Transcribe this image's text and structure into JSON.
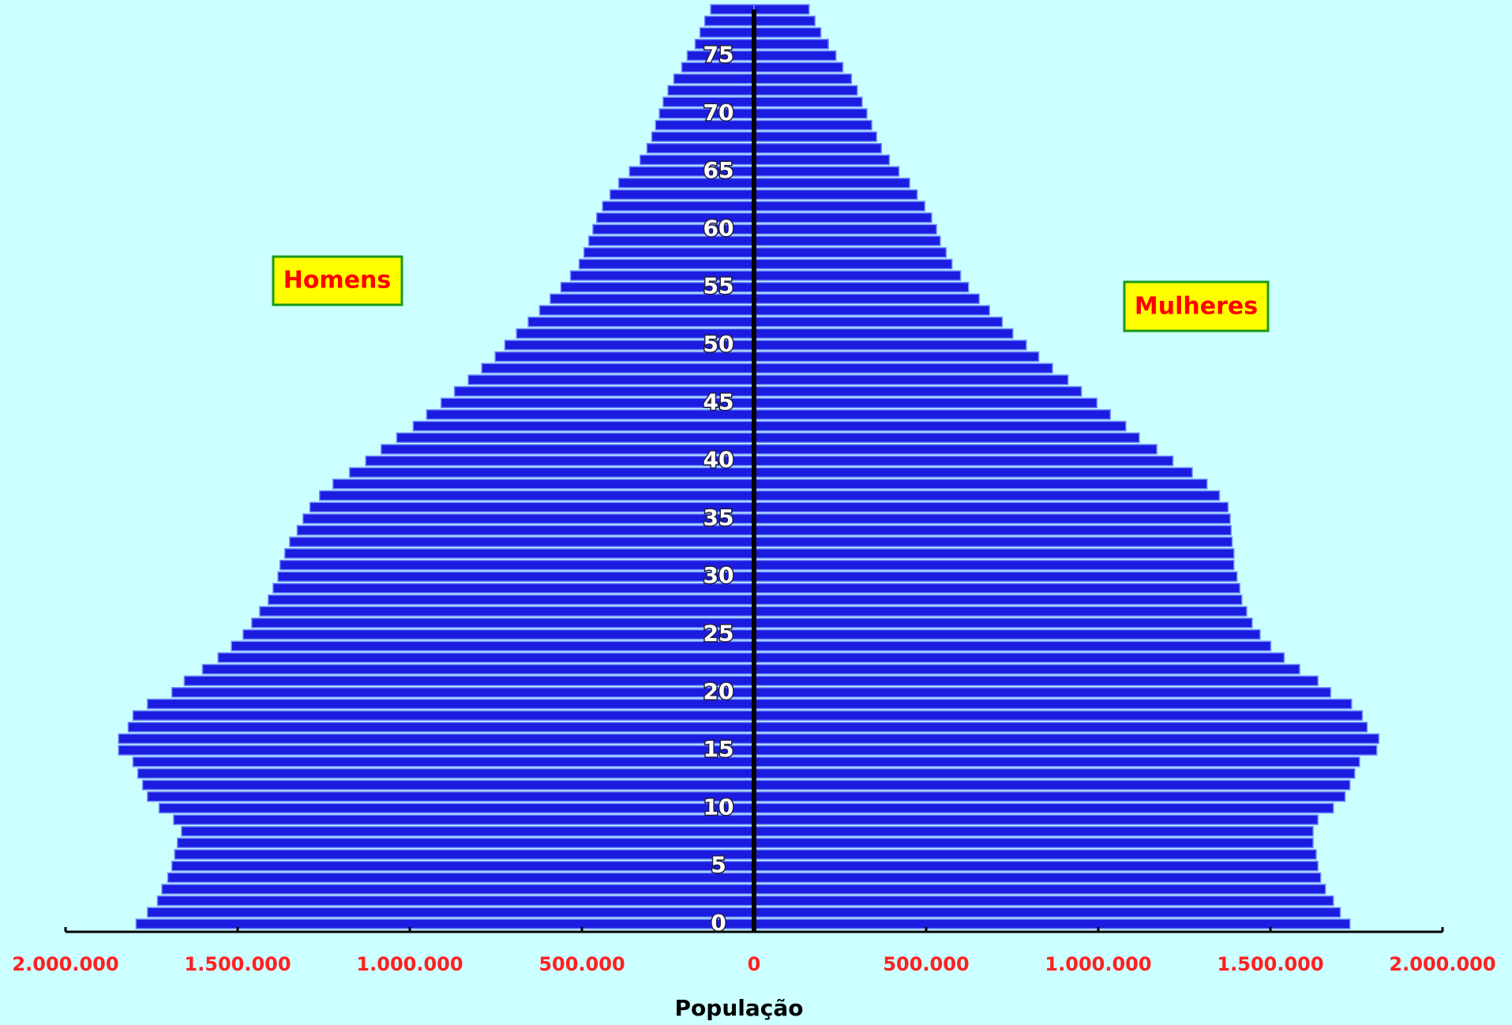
{
  "chart_data": {
    "type": "pyramid",
    "xlabel": "População",
    "categories": [
      0,
      null,
      null,
      null,
      null,
      5,
      null,
      null,
      null,
      null,
      10,
      null,
      null,
      null,
      null,
      15,
      null,
      null,
      null,
      null,
      20,
      null,
      null,
      null,
      null,
      25,
      null,
      null,
      null,
      null,
      30,
      null,
      null,
      null,
      null,
      35,
      null,
      null,
      null,
      null,
      40,
      null,
      null,
      null,
      null,
      45,
      null,
      null,
      null,
      null,
      50,
      null,
      null,
      null,
      null,
      55,
      null,
      null,
      null,
      null,
      60,
      null,
      null,
      null,
      null,
      65,
      null,
      null,
      null,
      null,
      70,
      null,
      null,
      null,
      null,
      75,
      null,
      null,
      null,
      null
    ],
    "series": [
      {
        "name": "Homens",
        "color": "#1c1ce0",
        "values": [
          -1795000,
          -1762000,
          -1733000,
          -1720000,
          -1703000,
          -1691000,
          -1683000,
          -1675000,
          -1663000,
          -1686000,
          -1728000,
          -1762000,
          -1776000,
          -1790000,
          -1804000,
          -1846000,
          -1846000,
          -1818000,
          -1804000,
          -1762000,
          -1691000,
          -1655000,
          -1602000,
          -1557000,
          -1518000,
          -1484000,
          -1459000,
          -1436000,
          -1411000,
          -1397000,
          -1383000,
          -1377000,
          -1363000,
          -1349000,
          -1327000,
          -1310000,
          -1290000,
          -1262000,
          -1223000,
          -1175000,
          -1128000,
          -1083000,
          -1038000,
          -990000,
          -951000,
          -909000,
          -870000,
          -830000,
          -791000,
          -752000,
          -724000,
          -690000,
          -656000,
          -623000,
          -592000,
          -561000,
          -533000,
          -508000,
          -494000,
          -480000,
          -468000,
          -457000,
          -440000,
          -418000,
          -393000,
          -362000,
          -331000,
          -311000,
          -297000,
          -286000,
          -275000,
          -264000,
          -250000,
          -233000,
          -210000,
          -194000,
          -171000,
          -157000,
          -143000,
          -126000
        ]
      },
      {
        "name": "Mulheres",
        "color": "#1c1ce0",
        "values": [
          1731000,
          1703000,
          1683000,
          1660000,
          1646000,
          1638000,
          1633000,
          1624000,
          1624000,
          1638000,
          1683000,
          1717000,
          1731000,
          1745000,
          1759000,
          1809000,
          1815000,
          1781000,
          1767000,
          1736000,
          1675000,
          1638000,
          1585000,
          1540000,
          1501000,
          1470000,
          1447000,
          1431000,
          1417000,
          1411000,
          1403000,
          1394000,
          1394000,
          1389000,
          1386000,
          1383000,
          1377000,
          1352000,
          1316000,
          1273000,
          1217000,
          1170000,
          1119000,
          1080000,
          1035000,
          996000,
          951000,
          912000,
          867000,
          827000,
          791000,
          752000,
          721000,
          684000,
          654000,
          623000,
          600000,
          575000,
          558000,
          541000,
          530000,
          516000,
          496000,
          474000,
          452000,
          421000,
          393000,
          370000,
          356000,
          342000,
          328000,
          314000,
          300000,
          283000,
          258000,
          238000,
          216000,
          194000,
          177000,
          160000
        ]
      }
    ],
    "xlim": [
      -2000000,
      2000000
    ],
    "xticks": [
      {
        "value": -2000000,
        "label": "2.000.000"
      },
      {
        "value": -1500000,
        "label": "1.500.000"
      },
      {
        "value": -1000000,
        "label": "1.000.000"
      },
      {
        "value": -500000,
        "label": "500.000"
      },
      0,
      {
        "value": 500000,
        "label": "500.000"
      },
      {
        "value": 1000000,
        "label": "1.000.000"
      },
      {
        "value": 1500000,
        "label": "1.500.000"
      },
      {
        "value": 2000000,
        "label": "2.000.000"
      }
    ]
  }
}
